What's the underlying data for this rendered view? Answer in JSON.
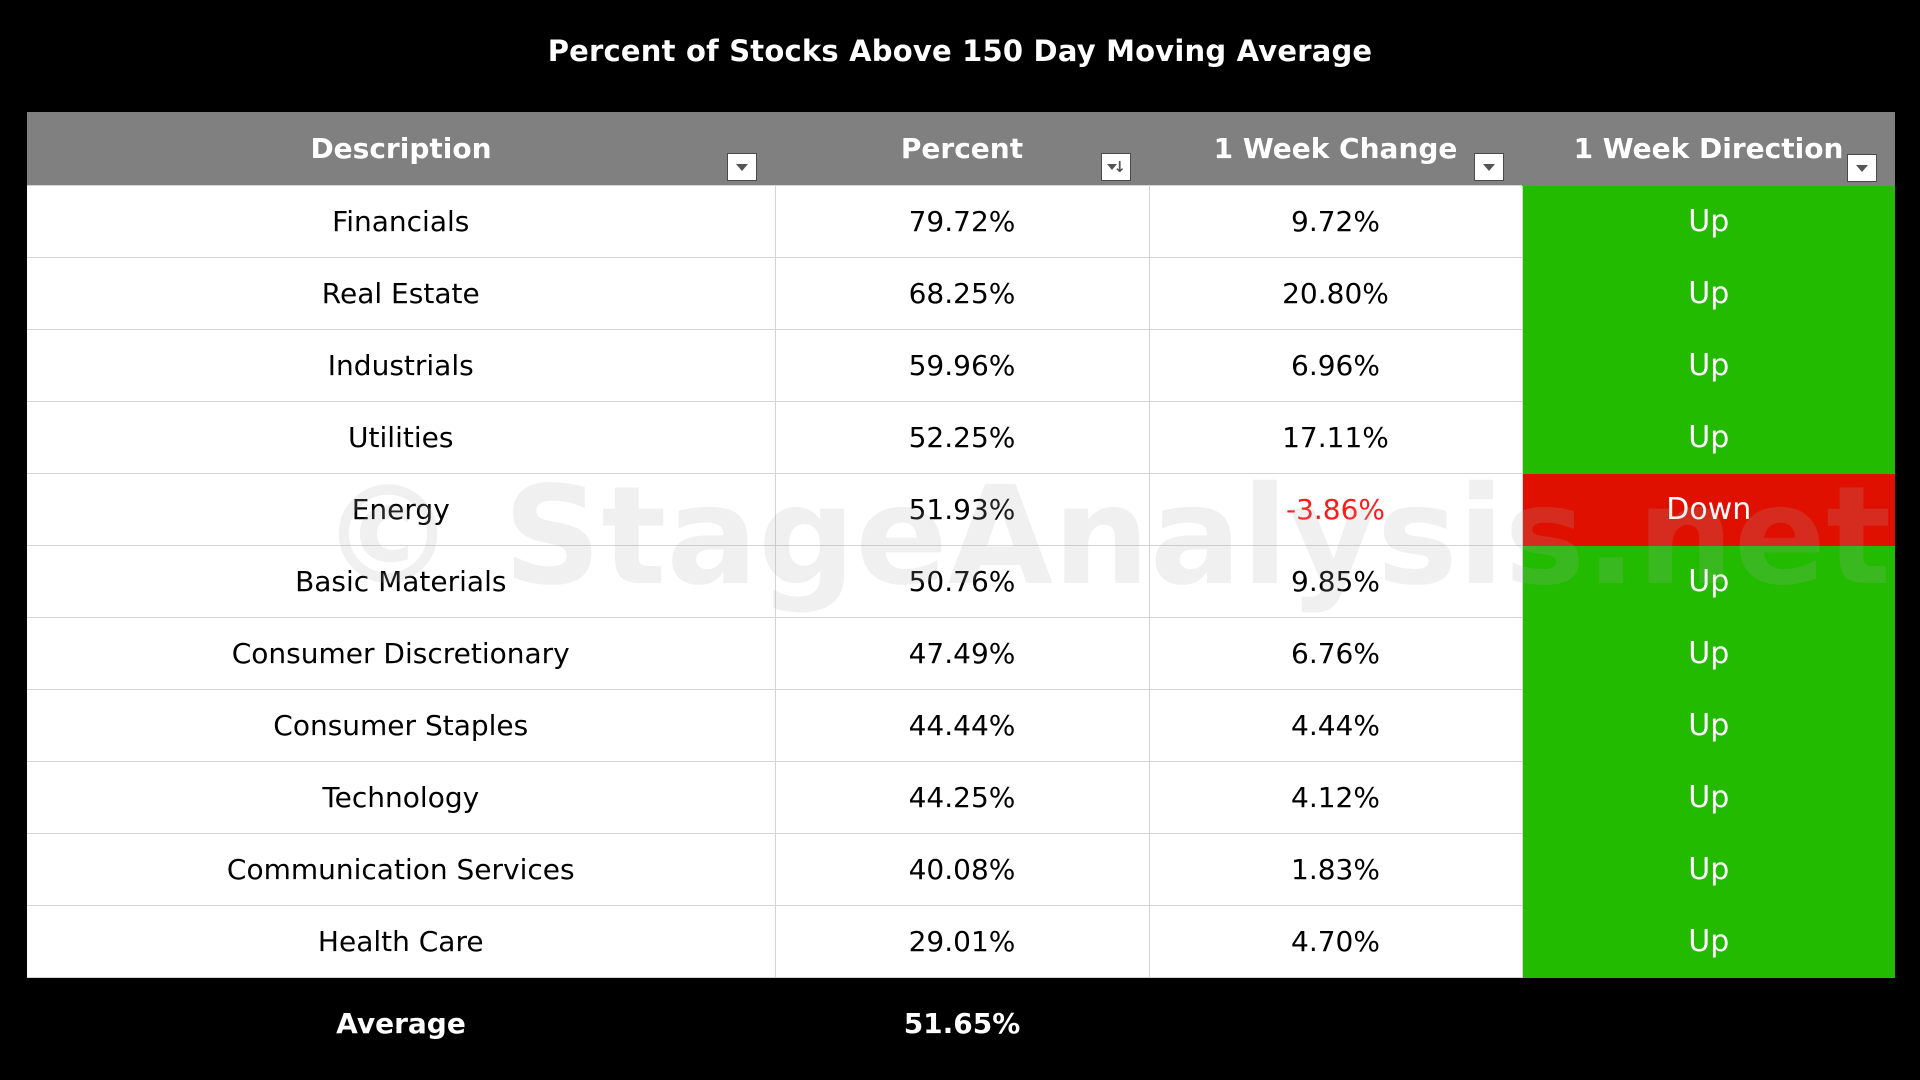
{
  "chart_data": {
    "type": "table",
    "title": "Percent of Stocks Above 150 Day Moving Average",
    "columns": [
      "Description",
      "Percent",
      "1 Week Change",
      "1 Week Direction"
    ],
    "rows": [
      {
        "description": "Financials",
        "percent": "79.72%",
        "change": "9.72%",
        "direction": "Up",
        "negative": false
      },
      {
        "description": "Real Estate",
        "percent": "68.25%",
        "change": "20.80%",
        "direction": "Up",
        "negative": false
      },
      {
        "description": "Industrials",
        "percent": "59.96%",
        "change": "6.96%",
        "direction": "Up",
        "negative": false
      },
      {
        "description": "Utilities",
        "percent": "52.25%",
        "change": "17.11%",
        "direction": "Up",
        "negative": false
      },
      {
        "description": "Energy",
        "percent": "51.93%",
        "change": "-3.86%",
        "direction": "Down",
        "negative": true
      },
      {
        "description": "Basic Materials",
        "percent": "50.76%",
        "change": "9.85%",
        "direction": "Up",
        "negative": false
      },
      {
        "description": "Consumer Discretionary",
        "percent": "47.49%",
        "change": "6.76%",
        "direction": "Up",
        "negative": false
      },
      {
        "description": "Consumer Staples",
        "percent": "44.44%",
        "change": "4.44%",
        "direction": "Up",
        "negative": false
      },
      {
        "description": "Technology",
        "percent": "44.25%",
        "change": "4.12%",
        "direction": "Up",
        "negative": false
      },
      {
        "description": "Communication Services",
        "percent": "40.08%",
        "change": "1.83%",
        "direction": "Up",
        "negative": false
      },
      {
        "description": "Health Care",
        "percent": "29.01%",
        "change": "4.70%",
        "direction": "Up",
        "negative": false
      }
    ],
    "footer": {
      "label": "Average",
      "percent": "51.65%"
    },
    "colors": {
      "up": "#22bb00",
      "down": "#e01000",
      "negative_text": "#ff1a1a",
      "header": "#808080",
      "background": "#000000"
    }
  },
  "watermark": "© StageAnalysis.net",
  "icons": {
    "filter": "filter-dropdown-icon",
    "sort_desc": "sort-descending-icon"
  }
}
